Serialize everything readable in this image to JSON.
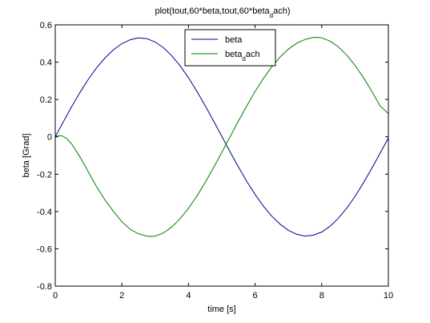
{
  "chart_data": {
    "type": "line",
    "title_main": "plot(tout,60*beta,tout,60*beta",
    "title_sub": "d",
    "title_end": "ach)",
    "xlabel": "time [s]",
    "ylabel": "beta [Grad]",
    "xlim": [
      0,
      10
    ],
    "ylim": [
      -0.8,
      0.6
    ],
    "xticks": [
      0,
      2,
      4,
      6,
      8,
      10
    ],
    "xtick_labels": [
      "0",
      "2",
      "4",
      "6",
      "8",
      "10"
    ],
    "yticks": [
      0.6,
      0.4,
      0.2,
      0,
      -0.2,
      -0.4,
      -0.6,
      -0.8
    ],
    "ytick_labels": [
      "0.6",
      "0.4",
      "0.2",
      "0",
      "-0.2",
      "-0.4",
      "-0.6",
      "-0.8"
    ],
    "grid": false,
    "legend_position": "top-center",
    "series": [
      {
        "name": "beta",
        "label_main": "beta",
        "label_sub": "",
        "label_end": "",
        "color": "#00008b",
        "x": [
          0,
          0.25,
          0.5,
          0.75,
          1.0,
          1.25,
          1.5,
          1.75,
          2.0,
          2.25,
          2.5,
          2.75,
          3.0,
          3.25,
          3.5,
          3.75,
          4.0,
          4.25,
          4.5,
          4.75,
          5.0,
          5.25,
          5.5,
          5.75,
          6.0,
          6.25,
          6.5,
          6.75,
          7.0,
          7.25,
          7.5,
          7.75,
          8.0,
          8.25,
          8.5,
          8.75,
          9.0,
          9.25,
          9.5,
          9.75,
          10.0
        ],
        "y": [
          0.0,
          0.083,
          0.164,
          0.24,
          0.31,
          0.372,
          0.424,
          0.467,
          0.499,
          0.52,
          0.53,
          0.526,
          0.508,
          0.477,
          0.434,
          0.38,
          0.317,
          0.245,
          0.167,
          0.086,
          0.003,
          -0.081,
          -0.162,
          -0.239,
          -0.309,
          -0.372,
          -0.425,
          -0.468,
          -0.501,
          -0.522,
          -0.532,
          -0.527,
          -0.51,
          -0.479,
          -0.436,
          -0.382,
          -0.319,
          -0.247,
          -0.17,
          -0.088,
          -0.006
        ]
      },
      {
        "name": "beta_dach",
        "label_main": "beta",
        "label_sub": "d",
        "label_end": "ach",
        "color": "#007f00",
        "x": [
          0,
          0.1,
          0.2,
          0.35,
          0.5,
          0.75,
          1.0,
          1.25,
          1.5,
          1.75,
          2.0,
          2.25,
          2.5,
          2.75,
          2.9,
          3.0,
          3.25,
          3.5,
          3.75,
          4.0,
          4.25,
          4.5,
          4.75,
          5.0,
          5.25,
          5.5,
          5.75,
          6.0,
          6.25,
          6.5,
          6.75,
          7.0,
          7.25,
          7.5,
          7.75,
          7.9,
          8.0,
          8.25,
          8.5,
          8.75,
          9.0,
          9.25,
          9.5,
          9.75,
          10.0
        ],
        "y": [
          0.0,
          0.006,
          0.005,
          -0.01,
          -0.04,
          -0.11,
          -0.19,
          -0.27,
          -0.34,
          -0.4,
          -0.455,
          -0.495,
          -0.52,
          -0.532,
          -0.534,
          -0.532,
          -0.515,
          -0.483,
          -0.438,
          -0.383,
          -0.318,
          -0.245,
          -0.166,
          -0.083,
          0.001,
          0.085,
          0.166,
          0.243,
          0.313,
          0.375,
          0.428,
          0.47,
          0.502,
          0.522,
          0.532,
          0.533,
          0.53,
          0.513,
          0.482,
          0.438,
          0.383,
          0.318,
          0.245,
          0.166,
          0.125
        ]
      }
    ]
  }
}
